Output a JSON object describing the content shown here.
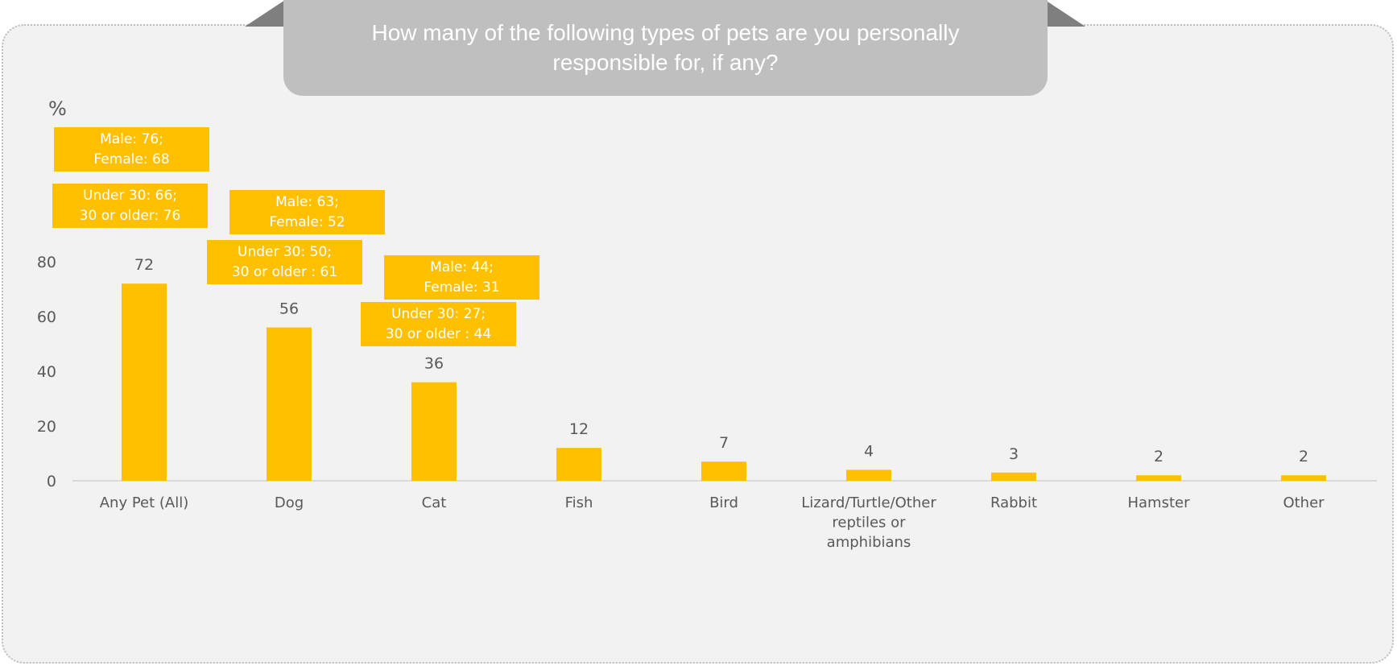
{
  "header": {
    "title": "How many of the following types of pets are you personally responsible for, if any?"
  },
  "chart_data": {
    "type": "bar",
    "title": "How many of the following types of pets are you personally responsible for, if any?",
    "ylabel": "%",
    "xlabel": "",
    "ylim": [
      0,
      80
    ],
    "yticks": [
      "0",
      "20",
      "40",
      "60",
      "80"
    ],
    "grid": false,
    "bar_color": "#ffc000",
    "categories": [
      [
        "Any Pet (All)"
      ],
      [
        "Dog"
      ],
      [
        "Cat"
      ],
      [
        "Fish"
      ],
      [
        "Bird"
      ],
      [
        "Lizard/Turtle/Other",
        "reptiles or",
        "amphibians"
      ],
      [
        "Rabbit"
      ],
      [
        "Hamster"
      ],
      [
        "Other"
      ]
    ],
    "values": [
      72,
      56,
      36,
      12,
      7,
      4,
      3,
      2,
      2
    ],
    "value_labels": [
      "72",
      "56",
      "36",
      "12",
      "7",
      "4",
      "3",
      "2",
      "2"
    ],
    "annotations": [
      {
        "lines": [
          "Male: 76;",
          "Female: 68"
        ]
      },
      {
        "lines": [
          "Under 30: 66;",
          "30 or older: 76"
        ]
      },
      {
        "lines": [
          "Male: 63;",
          "Female: 52"
        ]
      },
      {
        "lines": [
          "Under 30: 50;",
          "30 or older : 61"
        ]
      },
      {
        "lines": [
          "Male: 44;",
          "Female: 31"
        ]
      },
      {
        "lines": [
          "Under 30: 27;",
          "30 or older : 44"
        ]
      }
    ]
  }
}
